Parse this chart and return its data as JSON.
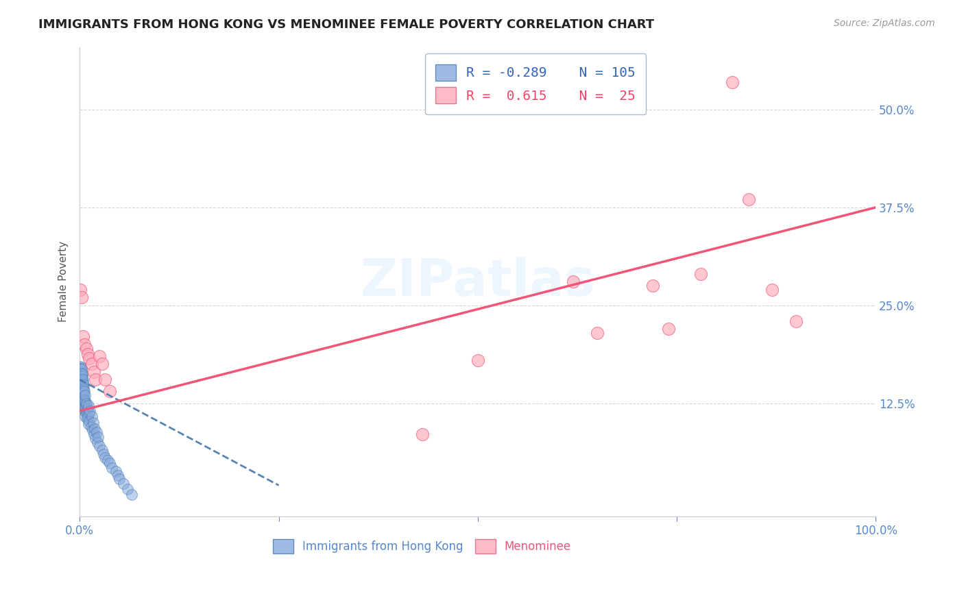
{
  "title": "IMMIGRANTS FROM HONG KONG VS MENOMINEE FEMALE POVERTY CORRELATION CHART",
  "source": "Source: ZipAtlas.com",
  "ylabel": "Female Poverty",
  "legend_label1": "Immigrants from Hong Kong",
  "legend_label2": "Menominee",
  "R1": -0.289,
  "N1": 105,
  "R2": 0.615,
  "N2": 25,
  "color_blue": "#88AADD",
  "color_pink": "#FFAABB",
  "trendline_blue": "#4477AA",
  "trendline_pink": "#EE5577",
  "ytick_labels": [
    "12.5%",
    "25.0%",
    "37.5%",
    "50.0%"
  ],
  "ytick_values": [
    0.125,
    0.25,
    0.375,
    0.5
  ],
  "xlim": [
    0.0,
    1.0
  ],
  "ylim": [
    -0.02,
    0.58
  ],
  "blue_trendline_x0": 0.0,
  "blue_trendline_y0": 0.155,
  "blue_trendline_x1": 0.25,
  "blue_trendline_y1": 0.02,
  "pink_trendline_x0": 0.0,
  "pink_trendline_y0": 0.115,
  "pink_trendline_x1": 1.0,
  "pink_trendline_y1": 0.375,
  "blue_scatter_x": [
    0.001,
    0.001,
    0.001,
    0.001,
    0.001,
    0.001,
    0.001,
    0.001,
    0.001,
    0.001,
    0.002,
    0.002,
    0.002,
    0.002,
    0.002,
    0.002,
    0.002,
    0.002,
    0.002,
    0.002,
    0.002,
    0.002,
    0.002,
    0.002,
    0.002,
    0.002,
    0.002,
    0.002,
    0.002,
    0.002,
    0.003,
    0.003,
    0.003,
    0.003,
    0.003,
    0.003,
    0.003,
    0.003,
    0.003,
    0.003,
    0.003,
    0.003,
    0.003,
    0.003,
    0.003,
    0.004,
    0.004,
    0.004,
    0.004,
    0.004,
    0.004,
    0.004,
    0.004,
    0.004,
    0.004,
    0.005,
    0.005,
    0.005,
    0.005,
    0.005,
    0.005,
    0.005,
    0.006,
    0.006,
    0.006,
    0.006,
    0.007,
    0.007,
    0.007,
    0.007,
    0.008,
    0.008,
    0.008,
    0.009,
    0.009,
    0.01,
    0.01,
    0.011,
    0.011,
    0.012,
    0.012,
    0.013,
    0.014,
    0.015,
    0.016,
    0.017,
    0.018,
    0.019,
    0.02,
    0.021,
    0.022,
    0.023,
    0.025,
    0.028,
    0.03,
    0.032,
    0.035,
    0.038,
    0.04,
    0.045,
    0.048,
    0.05,
    0.055,
    0.06,
    0.065
  ],
  "blue_scatter_y": [
    0.16,
    0.165,
    0.15,
    0.17,
    0.155,
    0.145,
    0.172,
    0.168,
    0.158,
    0.162,
    0.155,
    0.16,
    0.145,
    0.165,
    0.15,
    0.14,
    0.17,
    0.158,
    0.148,
    0.163,
    0.153,
    0.143,
    0.168,
    0.156,
    0.146,
    0.135,
    0.16,
    0.15,
    0.14,
    0.155,
    0.148,
    0.142,
    0.152,
    0.145,
    0.138,
    0.16,
    0.15,
    0.14,
    0.155,
    0.148,
    0.135,
    0.162,
    0.143,
    0.153,
    0.13,
    0.145,
    0.135,
    0.15,
    0.14,
    0.125,
    0.155,
    0.145,
    0.13,
    0.14,
    0.12,
    0.138,
    0.128,
    0.148,
    0.118,
    0.133,
    0.123,
    0.143,
    0.13,
    0.14,
    0.12,
    0.115,
    0.128,
    0.118,
    0.135,
    0.108,
    0.122,
    0.112,
    0.125,
    0.115,
    0.105,
    0.118,
    0.108,
    0.122,
    0.098,
    0.112,
    0.102,
    0.115,
    0.095,
    0.108,
    0.09,
    0.1,
    0.085,
    0.092,
    0.08,
    0.088,
    0.075,
    0.082,
    0.07,
    0.065,
    0.06,
    0.055,
    0.052,
    0.048,
    0.042,
    0.038,
    0.033,
    0.028,
    0.022,
    0.015,
    0.008
  ],
  "pink_scatter_x": [
    0.001,
    0.002,
    0.004,
    0.006,
    0.008,
    0.01,
    0.012,
    0.015,
    0.018,
    0.02,
    0.025,
    0.028,
    0.032,
    0.038,
    0.43,
    0.62,
    0.65,
    0.72,
    0.74,
    0.78,
    0.82,
    0.84,
    0.87,
    0.9,
    0.5
  ],
  "pink_scatter_y": [
    0.27,
    0.26,
    0.21,
    0.2,
    0.195,
    0.188,
    0.182,
    0.175,
    0.165,
    0.155,
    0.185,
    0.175,
    0.155,
    0.14,
    0.085,
    0.28,
    0.215,
    0.275,
    0.22,
    0.29,
    0.535,
    0.385,
    0.27,
    0.23,
    0.18
  ]
}
